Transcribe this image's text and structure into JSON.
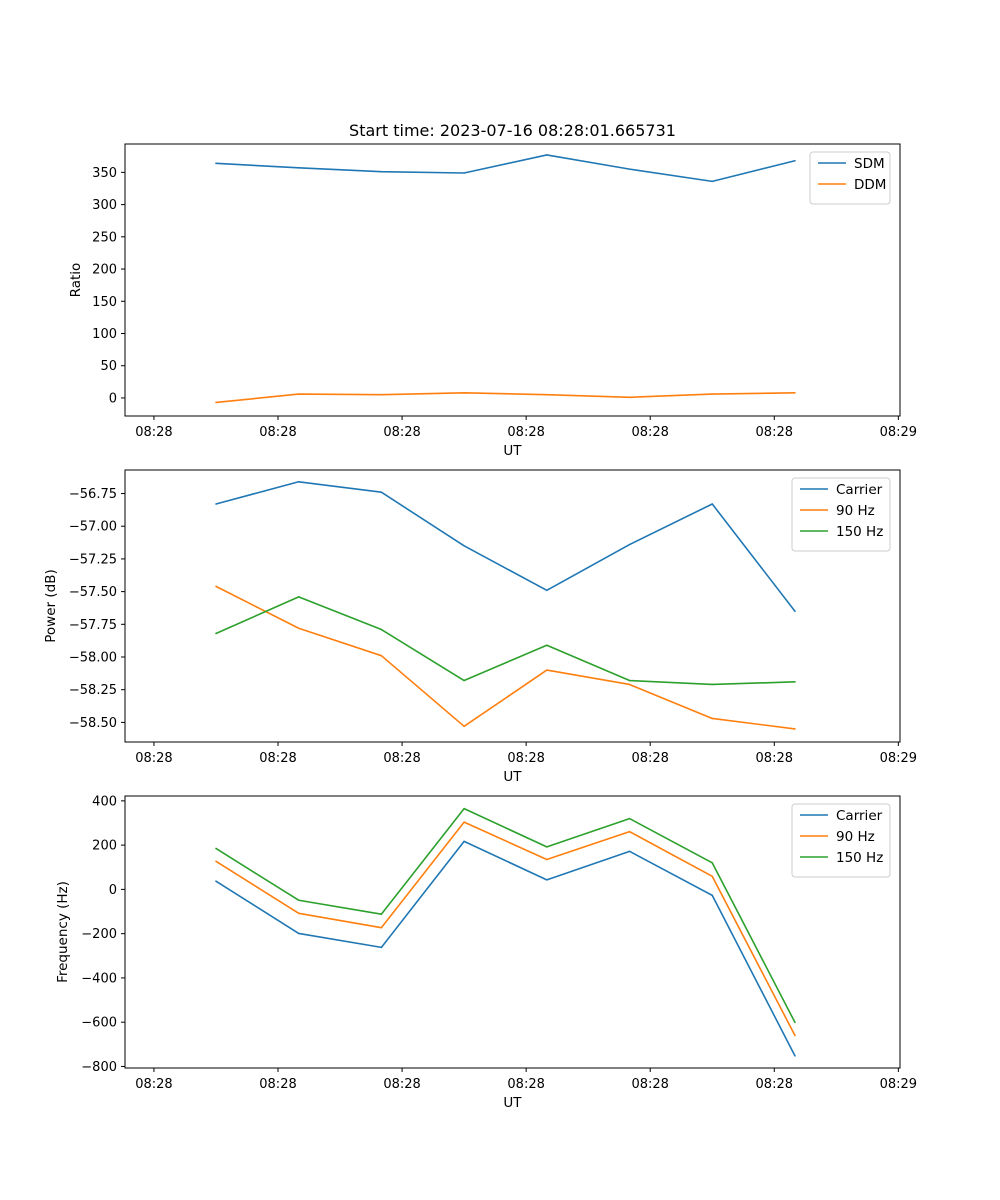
{
  "figure_title": "Start time: 2023-07-16 08:28:01.665731",
  "colors": {
    "blue": "#1f77b4",
    "orange": "#ff7f0e",
    "green": "#2ca02c",
    "axis": "#000000",
    "legend_border": "#cccccc"
  },
  "chart_data": [
    {
      "type": "line",
      "title": "Start time: 2023-07-16 08:28:01.665731",
      "xlabel": "UT",
      "ylabel": "Ratio",
      "x": [
        0,
        1,
        2,
        3,
        4,
        5,
        6,
        7
      ],
      "x_tick_values": [
        -0.75,
        0.75,
        2.25,
        3.75,
        5.25,
        6.75,
        8.25
      ],
      "x_tick_labels": [
        "08:28",
        "08:28",
        "08:28",
        "08:28",
        "08:28",
        "08:28",
        "08:29"
      ],
      "xlim": [
        -1.1,
        8.27
      ],
      "ylim": [
        -28,
        394
      ],
      "y_ticks": [
        0,
        50,
        100,
        150,
        200,
        250,
        300,
        350
      ],
      "legend_position": "top-right",
      "series": [
        {
          "name": "SDM",
          "color": "#1f77b4",
          "values": [
            364,
            357,
            351,
            349,
            377,
            355,
            336,
            368
          ]
        },
        {
          "name": "DDM",
          "color": "#ff7f0e",
          "values": [
            -7,
            6,
            5,
            8,
            5,
            1,
            6,
            8
          ]
        }
      ]
    },
    {
      "type": "line",
      "title": "",
      "xlabel": "UT",
      "ylabel": "Power (dB)",
      "x": [
        0,
        1,
        2,
        3,
        4,
        5,
        6,
        7
      ],
      "x_tick_values": [
        -0.75,
        0.75,
        2.25,
        3.75,
        5.25,
        6.75,
        8.25
      ],
      "x_tick_labels": [
        "08:28",
        "08:28",
        "08:28",
        "08:28",
        "08:28",
        "08:28",
        "08:29"
      ],
      "xlim": [
        -1.1,
        8.27
      ],
      "ylim": [
        -58.65,
        -56.57
      ],
      "y_ticks": [
        -58.5,
        -58.25,
        -58.0,
        -57.75,
        -57.5,
        -57.25,
        -57.0,
        -56.75
      ],
      "y_tick_labels": [
        "−58.50",
        "−58.25",
        "−58.00",
        "−57.75",
        "−57.50",
        "−57.25",
        "−57.00",
        "−56.75"
      ],
      "legend_position": "top-right",
      "series": [
        {
          "name": "Carrier",
          "color": "#1f77b4",
          "values": [
            -56.83,
            -56.66,
            -56.74,
            -57.15,
            -57.49,
            -57.14,
            -56.83,
            -57.65
          ]
        },
        {
          "name": "90 Hz",
          "color": "#ff7f0e",
          "values": [
            -57.46,
            -57.78,
            -57.99,
            -58.53,
            -58.1,
            -58.21,
            -58.47,
            -58.55
          ]
        },
        {
          "name": "150 Hz",
          "color": "#2ca02c",
          "values": [
            -57.82,
            -57.54,
            -57.79,
            -58.18,
            -57.91,
            -58.18,
            -58.21,
            -58.19
          ]
        }
      ]
    },
    {
      "type": "line",
      "title": "",
      "xlabel": "UT",
      "ylabel": "Frequency (Hz)",
      "x": [
        0,
        1,
        2,
        3,
        4,
        5,
        6,
        7
      ],
      "x_tick_values": [
        -0.75,
        0.75,
        2.25,
        3.75,
        5.25,
        6.75,
        8.25
      ],
      "x_tick_labels": [
        "08:28",
        "08:28",
        "08:28",
        "08:28",
        "08:28",
        "08:28",
        "08:29"
      ],
      "xlim": [
        -1.1,
        8.27
      ],
      "ylim": [
        -807,
        422
      ],
      "y_ticks": [
        -800,
        -600,
        -400,
        -200,
        0,
        200,
        400
      ],
      "y_tick_labels": [
        "−800",
        "−600",
        "−400",
        "−200",
        "0",
        "200",
        "400"
      ],
      "legend_position": "top-right",
      "series": [
        {
          "name": "Carrier",
          "color": "#1f77b4",
          "values": [
            37,
            -199,
            -262,
            217,
            43,
            172,
            -27,
            -752
          ]
        },
        {
          "name": "90 Hz",
          "color": "#ff7f0e",
          "values": [
            127,
            -108,
            -173,
            304,
            135,
            261,
            59,
            -660
          ]
        },
        {
          "name": "150 Hz",
          "color": "#2ca02c",
          "values": [
            185,
            -49,
            -112,
            365,
            192,
            320,
            120,
            -601
          ]
        }
      ]
    }
  ]
}
